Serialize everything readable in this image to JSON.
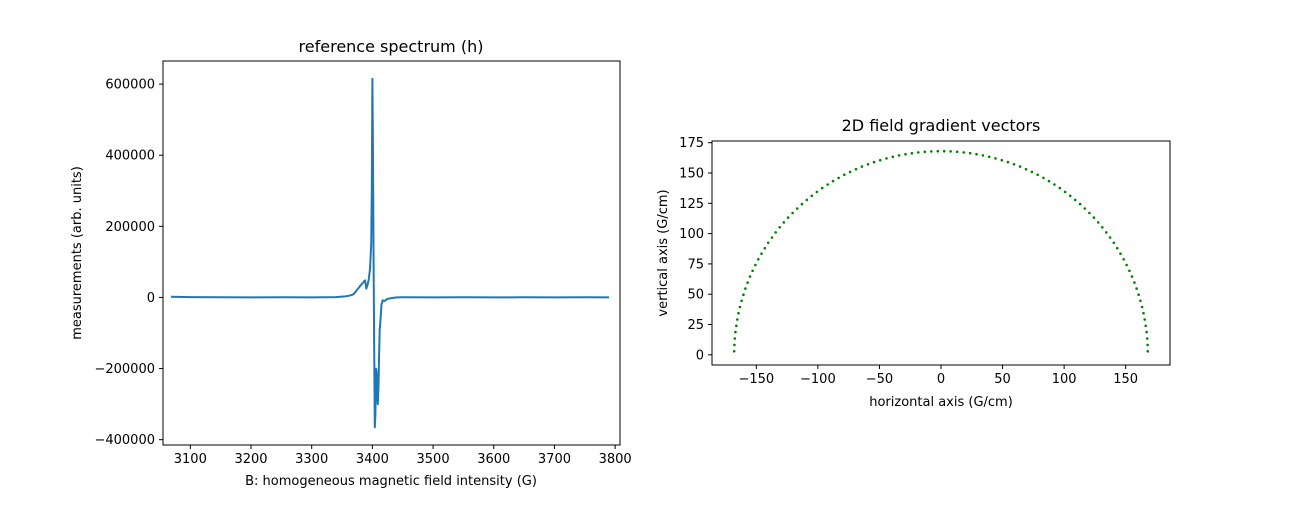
{
  "chart_data": [
    {
      "type": "line",
      "title": "reference spectrum (h)",
      "xlabel": "B: homogeneous magnetic field intensity (G)",
      "ylabel": "measurements (arb. units)",
      "xlim": [
        3055,
        3808
      ],
      "ylim": [
        -415000,
        665000
      ],
      "xticks": [
        3100,
        3200,
        3300,
        3400,
        3500,
        3600,
        3700,
        3800
      ],
      "xtick_labels": [
        "3100",
        "3200",
        "3300",
        "3400",
        "3500",
        "3600",
        "3700",
        "3800"
      ],
      "yticks": [
        -400000,
        -200000,
        0,
        200000,
        400000,
        600000
      ],
      "ytick_labels": [
        "−400000",
        "−200000",
        "0",
        "200000",
        "400000",
        "600000"
      ],
      "grid": false,
      "color": "#1f77b4",
      "series": [
        {
          "x": [
            3068,
            3100,
            3150,
            3200,
            3250,
            3300,
            3340,
            3355,
            3362,
            3368,
            3372,
            3375,
            3378,
            3381,
            3384,
            3386,
            3388,
            3390,
            3392,
            3394,
            3396,
            3398,
            3399,
            3400,
            3401,
            3402,
            3403,
            3404,
            3405,
            3406,
            3407,
            3408,
            3409,
            3410,
            3411,
            3412,
            3413,
            3415,
            3417,
            3420,
            3424,
            3430,
            3440,
            3450,
            3500,
            3550,
            3600,
            3650,
            3700,
            3750,
            3790
          ],
          "y": [
            2000,
            1000,
            500,
            0,
            500,
            0,
            1000,
            3000,
            5000,
            8000,
            15000,
            22000,
            28000,
            35000,
            40000,
            45000,
            48000,
            25000,
            35000,
            50000,
            80000,
            150000,
            300000,
            615000,
            400000,
            100000,
            -150000,
            -365000,
            -330000,
            -200000,
            -210000,
            -270000,
            -300000,
            -250000,
            -160000,
            -90000,
            -70000,
            -20000,
            -8000,
            -10000,
            -5000,
            -2000,
            0,
            500,
            0,
            500,
            0,
            500,
            0,
            500,
            0
          ]
        }
      ]
    },
    {
      "type": "scatter",
      "title": "2D field gradient vectors",
      "xlabel": "horizontal axis (G/cm)",
      "ylabel": "vertical axis (G/cm)",
      "xlim": [
        -186,
        186
      ],
      "ylim": [
        -8.4,
        176.4
      ],
      "xticks": [
        -150,
        -100,
        -50,
        0,
        50,
        100,
        150
      ],
      "xtick_labels": [
        "−150",
        "−100",
        "−50",
        "0",
        "50",
        "100",
        "150"
      ],
      "yticks": [
        0,
        25,
        50,
        75,
        100,
        125,
        150,
        175
      ],
      "ytick_labels": [
        "0",
        "25",
        "50",
        "75",
        "100",
        "125",
        "150",
        "175"
      ],
      "grid": false,
      "color": "#008000",
      "radius": 168,
      "num_points": 100,
      "angle_range_deg": [
        1,
        179
      ]
    }
  ]
}
